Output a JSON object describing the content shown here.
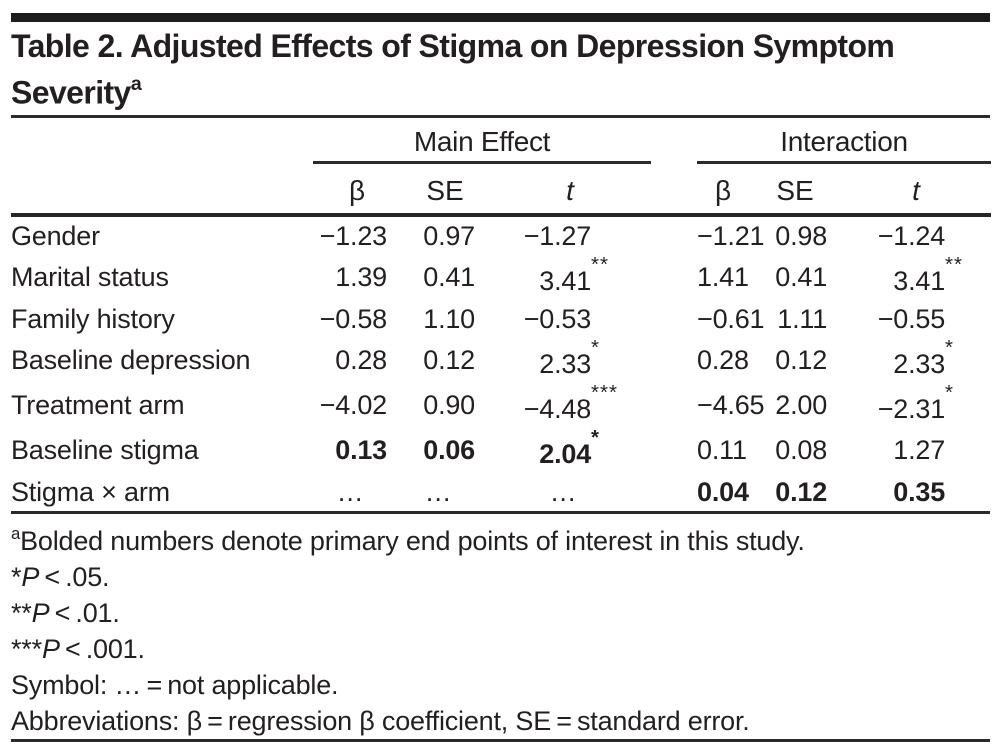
{
  "title": {
    "line1": "Table 2. Adjusted Effects of Stigma on Depression Symptom",
    "line2": "Severity",
    "marker": "a"
  },
  "table": {
    "spanners": {
      "main": "Main Effect",
      "interaction": "Interaction"
    },
    "columns": {
      "beta": "β",
      "se": "SE",
      "t": "t"
    },
    "rows": [
      {
        "label": "Gender",
        "bold": "",
        "main": {
          "beta": "−1.23",
          "se": "0.97",
          "t": "−1.27",
          "stars": ""
        },
        "interaction": {
          "beta": "−1.21",
          "se": "0.98",
          "t": "−1.24",
          "stars": ""
        }
      },
      {
        "label": "Marital status",
        "bold": "",
        "main": {
          "beta": "1.39",
          "se": "0.41",
          "t": "3.41",
          "stars": "**"
        },
        "interaction": {
          "beta": "1.41",
          "se": "0.41",
          "t": "3.41",
          "stars": "**"
        }
      },
      {
        "label": "Family history",
        "bold": "",
        "main": {
          "beta": "−0.58",
          "se": "1.10",
          "t": "−0.53",
          "stars": ""
        },
        "interaction": {
          "beta": "−0.61",
          "se": "1.11",
          "t": "−0.55",
          "stars": ""
        }
      },
      {
        "label": "Baseline depression",
        "bold": "",
        "main": {
          "beta": "0.28",
          "se": "0.12",
          "t": "2.33",
          "stars": "*"
        },
        "interaction": {
          "beta": "0.28",
          "se": "0.12",
          "t": "2.33",
          "stars": "*"
        }
      },
      {
        "label": "Treatment arm",
        "bold": "",
        "main": {
          "beta": "−4.02",
          "se": "0.90",
          "t": "−4.48",
          "stars": "***"
        },
        "interaction": {
          "beta": "−4.65",
          "se": "2.00",
          "t": "−2.31",
          "stars": "*"
        }
      },
      {
        "label": "Baseline stigma",
        "bold": "main",
        "main": {
          "beta": "0.13",
          "se": "0.06",
          "t": "2.04",
          "stars": "*"
        },
        "interaction": {
          "beta": "0.11",
          "se": "0.08",
          "t": "1.27",
          "stars": ""
        }
      },
      {
        "label": "Stigma × arm",
        "bold": "interaction",
        "main": {
          "beta": "…",
          "se": "…",
          "t": "…",
          "stars": ""
        },
        "interaction": {
          "beta": "0.04",
          "se": "0.12",
          "t": "0.35",
          "stars": ""
        }
      }
    ]
  },
  "footnotes": {
    "a": {
      "sup": "a",
      "text": "Bolded numbers denote primary end points of interest in this study."
    },
    "p05": {
      "stars": "*",
      "p": "P",
      "rest": " < .05."
    },
    "p01": {
      "stars": "**",
      "p": "P",
      "rest": " < .01."
    },
    "p001": {
      "stars": "***",
      "p": "P",
      "rest": " < .001."
    },
    "symbol": "Symbol: … = not applicable.",
    "abbrev": "Abbreviations: β = regression β coefficient, SE = standard error."
  }
}
